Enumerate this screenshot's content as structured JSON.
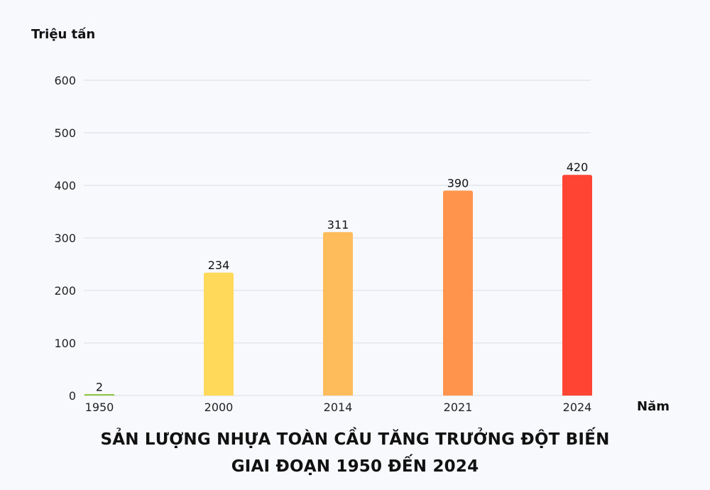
{
  "chart_data": {
    "type": "bar",
    "title": [
      "SẢN LƯỢNG NHỰA TOÀN CẦU TĂNG TRƯỞNG ĐỘT BIẾN",
      "GIAI ĐOẠN 1950 ĐẾN 2024"
    ],
    "xlabel": "Năm",
    "ylabel": "Triệu tấn",
    "categories": [
      "1950",
      "2000",
      "2014",
      "2021",
      "2024"
    ],
    "values": [
      2,
      234,
      311,
      390,
      420
    ],
    "value_labels": [
      "2",
      "234",
      "311",
      "390",
      "420"
    ],
    "ylim": [
      0,
      600
    ],
    "yticks": [
      0,
      100,
      200,
      300,
      400,
      500,
      600
    ],
    "ytick_labels": [
      "0",
      "100",
      "200",
      "300",
      "400",
      "500",
      "600"
    ],
    "grid": true,
    "legend": "none",
    "colors": [
      "#8cc63f",
      "#ffd95a",
      "#ffbc5a",
      "#ff944d",
      "#ff4433"
    ],
    "gridline_color": "#dcdde3"
  }
}
